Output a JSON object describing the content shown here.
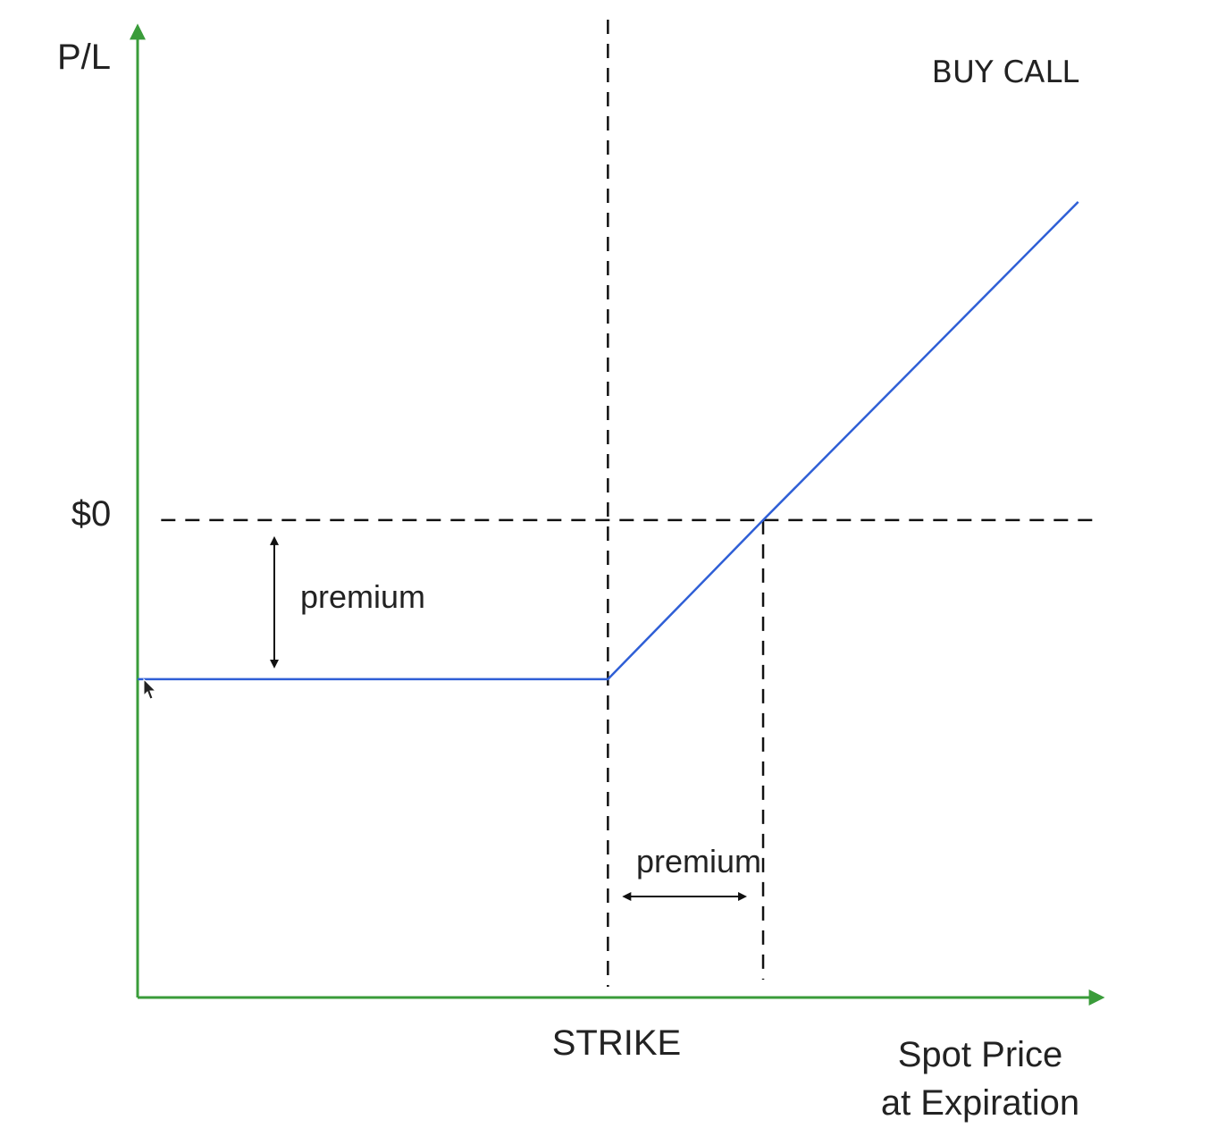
{
  "chart_data": {
    "type": "line",
    "title": "BUY CALL",
    "ylabel": "P/L",
    "xlabel": "Spot Price\nat Expiration",
    "xlabel_lines": [
      "Spot Price",
      "at Expiration"
    ],
    "y_tick_label": "$0",
    "x_tick_label": "STRIKE",
    "annotations": {
      "vertical_premium": "premium",
      "horizontal_premium": "premium"
    },
    "grid": false,
    "series": [
      {
        "x": [
          0,
          10,
          13.3,
          20
        ],
        "y": [
          -1,
          -1,
          0,
          2.0
        ]
      }
    ],
    "strike_x": 10,
    "breakeven_x": 13.3,
    "premium": 1,
    "xlim": [
      0,
      20.5
    ],
    "ylim": [
      -3,
      3.1
    ]
  },
  "colors": {
    "axis": "#3a9c3a",
    "payoff_line": "#2f5fd6",
    "dashed": "#111111",
    "text": "#222222"
  },
  "cursor": "arrow-cursor-icon"
}
